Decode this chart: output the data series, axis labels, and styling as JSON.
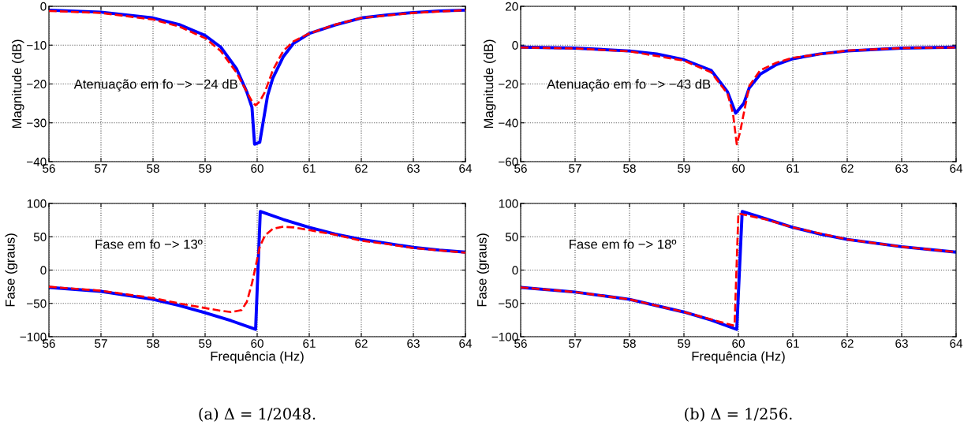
{
  "chart_data": [
    {
      "type": "line",
      "ylabel": "Magnitude (dB)",
      "xlim": [
        56,
        64
      ],
      "xticks": [
        56,
        57,
        58,
        59,
        60,
        61,
        62,
        63,
        64
      ],
      "ylim": [
        -40,
        0
      ],
      "yticks": [
        -40,
        -30,
        -20,
        -10,
        0
      ],
      "grid": true,
      "annotations": [
        "Atenuação em fo −> −24 dB"
      ],
      "series": [
        {
          "color": "#ff0000",
          "line_style": "dashed",
          "x": [
            56,
            57,
            58,
            58.5,
            59,
            59.3,
            59.6,
            59.8,
            59.9,
            59.97,
            60.05,
            60.15,
            60.3,
            60.5,
            60.7,
            61,
            61.5,
            62,
            63,
            64
          ],
          "values": [
            -1.2,
            -1.7,
            -3.4,
            -5.2,
            -8.2,
            -11.5,
            -17,
            -22,
            -24.5,
            -25.5,
            -24.5,
            -22,
            -16.5,
            -11.5,
            -9,
            -7,
            -4.7,
            -3,
            -1.7,
            -1
          ]
        },
        {
          "color": "#0000ff",
          "line_style": "solid",
          "x": [
            56,
            57,
            58,
            58.5,
            59,
            59.3,
            59.6,
            59.8,
            59.9,
            59.95,
            60.05,
            60.1,
            60.2,
            60.3,
            60.5,
            60.7,
            61,
            61.5,
            62,
            62.5,
            63,
            63.5,
            64
          ],
          "values": [
            -1,
            -1.5,
            -3,
            -4.7,
            -7.5,
            -10.5,
            -16,
            -22,
            -26,
            -35.5,
            -35,
            -31,
            -23,
            -18.5,
            -13,
            -9.5,
            -7,
            -4.8,
            -3,
            -2.2,
            -1.6,
            -1.2,
            -1
          ]
        }
      ]
    },
    {
      "type": "line",
      "ylabel": "Fase (graus)",
      "xlabel": "Frequência (Hz)",
      "xlim": [
        56,
        64
      ],
      "xticks": [
        56,
        57,
        58,
        59,
        60,
        61,
        62,
        63,
        64
      ],
      "ylim": [
        -100,
        100
      ],
      "yticks": [
        -100,
        -50,
        0,
        50,
        100
      ],
      "grid": true,
      "annotations": [
        "Fase em fo −> 13º",
        "(a) Δ = 1/2048."
      ],
      "series": [
        {
          "color": "#ff0000",
          "line_style": "dashed",
          "x": [
            56,
            57,
            58,
            58.5,
            59,
            59.3,
            59.5,
            59.7,
            59.8,
            59.9,
            59.97,
            60.05,
            60.15,
            60.3,
            60.5,
            60.7,
            61,
            61.5,
            62,
            62.5,
            63,
            64
          ],
          "values": [
            -25,
            -31,
            -42,
            -50,
            -57,
            -61,
            -63,
            -60,
            -48,
            -20,
            5,
            35,
            52,
            62,
            65,
            64,
            60,
            53,
            44,
            39,
            33,
            26
          ]
        },
        {
          "color": "#0000ff",
          "line_style": "solid",
          "x": [
            56,
            57,
            58,
            58.5,
            59,
            59.5,
            59.97,
            60.06,
            60.5,
            61,
            61.5,
            62,
            62.5,
            63,
            63.5,
            64
          ],
          "values": [
            -26,
            -32,
            -44,
            -53,
            -64,
            -76,
            -89,
            88,
            76,
            64,
            54,
            46,
            40,
            34,
            30,
            27
          ]
        }
      ]
    },
    {
      "type": "line",
      "ylabel": "Magnitude (dB)",
      "xlim": [
        56,
        64
      ],
      "xticks": [
        56,
        57,
        58,
        59,
        60,
        61,
        62,
        63,
        64
      ],
      "ylim": [
        -60,
        20
      ],
      "yticks": [
        -60,
        -40,
        -20,
        0,
        20
      ],
      "grid": true,
      "annotations": [
        "Atenuação em fo −> −43 dB"
      ],
      "series": [
        {
          "color": "#ff0000",
          "line_style": "dashed",
          "x": [
            56,
            57,
            58,
            59,
            59.5,
            59.8,
            59.9,
            59.97,
            60.03,
            60.1,
            60.2,
            60.4,
            60.7,
            61,
            62,
            63,
            64
          ],
          "values": [
            -1.2,
            -1.7,
            -3.2,
            -8,
            -14,
            -25,
            -35,
            -51,
            -45,
            -35,
            -21,
            -13,
            -9,
            -6.5,
            -2.8,
            -1.5,
            -1.2
          ]
        },
        {
          "color": "#0000ff",
          "line_style": "solid",
          "x": [
            56,
            57,
            58,
            58.5,
            59,
            59.5,
            59.8,
            59.95,
            60.1,
            60.2,
            60.4,
            60.7,
            61,
            61.5,
            62,
            63,
            64
          ],
          "values": [
            -1,
            -1.5,
            -3,
            -4.5,
            -7.5,
            -13,
            -24,
            -35,
            -30,
            -22,
            -15,
            -10,
            -7,
            -4.5,
            -3,
            -1.5,
            -1
          ]
        }
      ]
    },
    {
      "type": "line",
      "ylabel": "Fase (graus)",
      "xlabel": "Frequência (Hz)",
      "xlim": [
        56,
        64
      ],
      "xticks": [
        56,
        57,
        58,
        59,
        60,
        61,
        62,
        63,
        64
      ],
      "ylim": [
        -100,
        100
      ],
      "yticks": [
        -100,
        -50,
        0,
        50,
        100
      ],
      "grid": true,
      "annotations": [
        "Fase em fo −> 18º",
        "(b) Δ = 1/256."
      ],
      "series": [
        {
          "color": "#ff0000",
          "line_style": "dashed",
          "x": [
            56,
            57,
            58,
            59,
            59.5,
            59.9,
            59.93,
            60.0,
            60.5,
            61,
            62,
            63,
            64
          ],
          "values": [
            -26,
            -33,
            -44,
            -63,
            -74,
            -83,
            -83,
            85,
            76,
            64,
            46,
            35,
            27
          ]
        },
        {
          "color": "#0000ff",
          "line_style": "solid",
          "x": [
            56,
            57,
            58,
            59,
            59.5,
            59.97,
            60.07,
            60.5,
            61,
            61.5,
            62,
            63,
            64
          ],
          "values": [
            -26,
            -33,
            -44,
            -63,
            -75,
            -89,
            88,
            77,
            64,
            54,
            46,
            35,
            27
          ]
        }
      ]
    }
  ]
}
